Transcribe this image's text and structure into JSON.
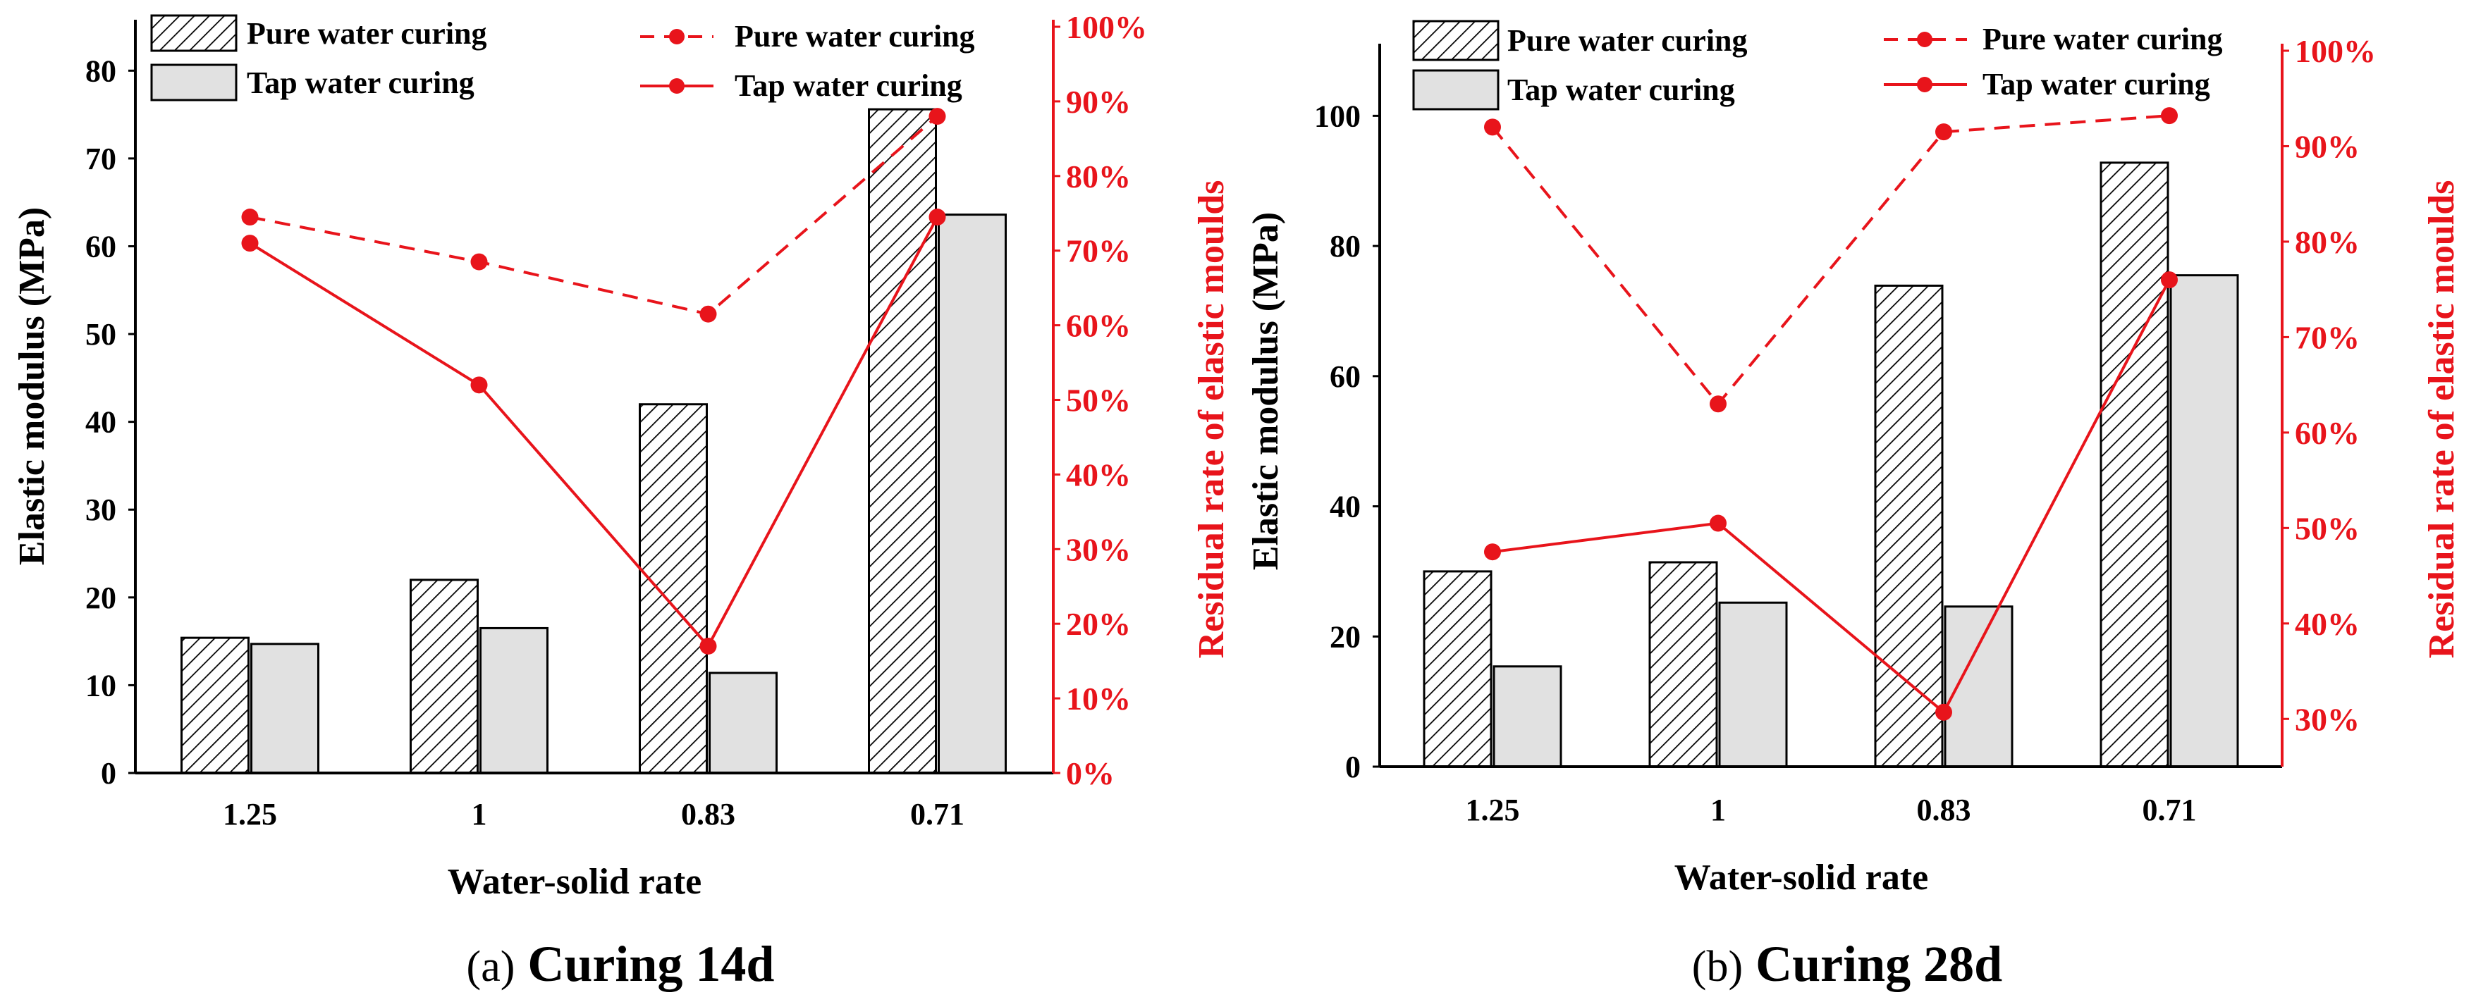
{
  "colors": {
    "pure_bar_stroke": "#000000",
    "tap_bar_fill": "#e1e1e1",
    "line": "#e8141b",
    "axis": "#000000"
  },
  "chart_data": [
    {
      "type": "bar+line",
      "caption_prefix": "(a)",
      "caption": "Curing 14d",
      "xlabel": "Water-solid rate",
      "ylabel": "Elastic modulus (MPa)",
      "y2label": "Residual rate of elastic moulds",
      "categories": [
        "1.25",
        "1",
        "0.83",
        "0.71"
      ],
      "ylim": [
        0,
        85
      ],
      "yticks": [
        0,
        10,
        20,
        30,
        40,
        50,
        60,
        70,
        80
      ],
      "y2lim": [
        0,
        100
      ],
      "y2ticks": [
        "0%",
        "10%",
        "20%",
        "30%",
        "40%",
        "50%",
        "60%",
        "70%",
        "80%",
        "90%",
        "100%"
      ],
      "bar_series": [
        {
          "name": "Pure water curing",
          "pattern": "hatched",
          "values": [
            15.4,
            22.0,
            42.0,
            75.6
          ]
        },
        {
          "name": "Tap water curing",
          "pattern": "solid-gray",
          "values": [
            14.7,
            16.5,
            11.4,
            63.6
          ]
        }
      ],
      "line_series": [
        {
          "name": "Pure water curing",
          "style": "dashed",
          "values": [
            74.5,
            68.5,
            61.5,
            88.0
          ]
        },
        {
          "name": "Tap water curing",
          "style": "solid",
          "values": [
            71.0,
            52.0,
            17.0,
            74.5
          ]
        }
      ],
      "legend": {
        "bars": [
          "Pure water curing",
          "Tap water curing"
        ],
        "lines": [
          "Pure water curing",
          "Tap water curing"
        ]
      }
    },
    {
      "type": "bar+line",
      "caption_prefix": "(b)",
      "caption": "Curing 28d",
      "xlabel": "Water-solid rate",
      "ylabel": "Elastic modulus (MPa)",
      "y2label": "Residual rate of elastic moulds",
      "categories": [
        "1.25",
        "1",
        "0.83",
        "0.71"
      ],
      "ylim": [
        0,
        110
      ],
      "yticks": [
        0,
        20,
        40,
        60,
        80,
        100
      ],
      "y2lim": [
        25,
        100
      ],
      "y2ticks": [
        "30%",
        "40%",
        "50%",
        "60%",
        "70%",
        "80%",
        "90%",
        "100%"
      ],
      "bar_series": [
        {
          "name": "Pure water curing",
          "pattern": "hatched",
          "values": [
            30.0,
            31.4,
            73.9,
            92.8
          ]
        },
        {
          "name": "Tap water curing",
          "pattern": "solid-gray",
          "values": [
            15.4,
            25.2,
            24.6,
            75.5
          ]
        }
      ],
      "line_series": [
        {
          "name": "Pure water curing",
          "style": "dashed",
          "values": [
            92.0,
            63.0,
            91.5,
            93.2
          ]
        },
        {
          "name": "Tap water curing",
          "style": "solid",
          "values": [
            47.5,
            50.5,
            30.7,
            76.0
          ]
        }
      ],
      "legend": {
        "bars": [
          "Pure water curing",
          "Tap water curing"
        ],
        "lines": [
          "Pure water curing",
          "Tap water curing"
        ]
      }
    }
  ]
}
